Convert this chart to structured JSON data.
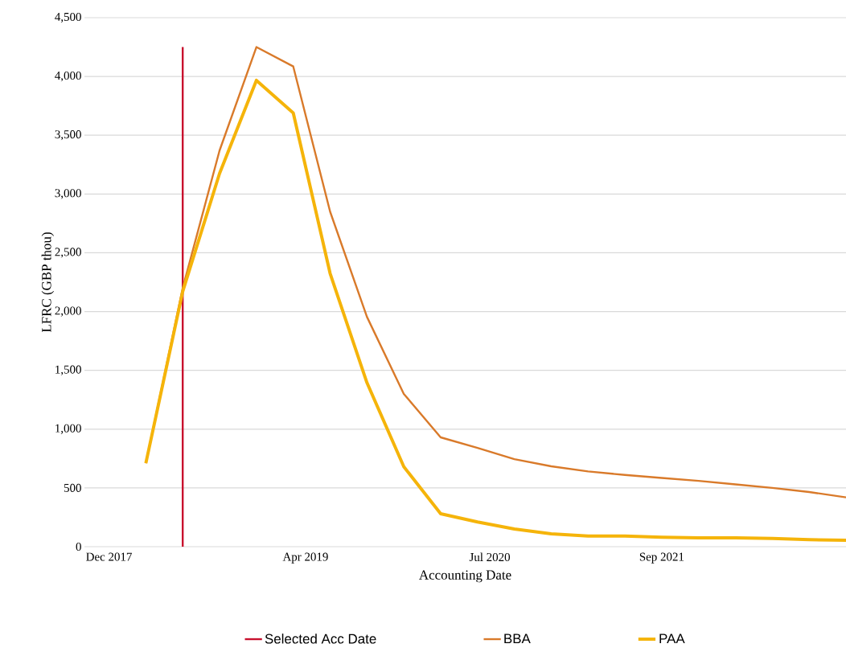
{
  "chart_data": {
    "type": "line",
    "xlabel": "Accounting Date",
    "ylabel": "LFRC  (GBP thou)",
    "x": [
      "2018-03",
      "2018-06",
      "2018-09",
      "2018-12",
      "2019-03",
      "2019-06",
      "2019-09",
      "2019-12",
      "2020-03",
      "2020-06",
      "2020-09",
      "2020-12",
      "2021-03",
      "2021-06",
      "2021-09",
      "2021-12",
      "2022-03",
      "2022-06",
      "2022-09",
      "2022-12"
    ],
    "series": [
      {
        "name": "Selected Acc Date",
        "color": "#c8102e",
        "x": [
          "2018-06",
          "2018-06"
        ],
        "values": [
          0,
          4250
        ]
      },
      {
        "name": "BBA",
        "color": "#d97a2a",
        "values": [
          710,
          2200,
          3370,
          4250,
          4085,
          2850,
          1955,
          1300,
          930,
          840,
          745,
          684,
          640,
          610,
          585,
          560,
          530,
          500,
          465,
          420
        ]
      },
      {
        "name": "PAA",
        "color": "#f5b40a",
        "values": [
          710,
          2170,
          3175,
          3967,
          3690,
          2325,
          1395,
          680,
          280,
          210,
          150,
          110,
          90,
          90,
          80,
          75,
          75,
          70,
          60,
          55
        ]
      }
    ],
    "xlim": [
      "2017-10",
      "2022-12"
    ],
    "xticks": [
      {
        "value": "2017-12",
        "label": "Dec 2017"
      },
      {
        "value": "2019-04",
        "label": "Apr 2019"
      },
      {
        "value": "2020-07",
        "label": "Jul 2020"
      },
      {
        "value": "2021-09",
        "label": "Sep 2021"
      }
    ],
    "ylim": [
      0,
      4500
    ],
    "yticks": [
      0,
      {
        "value": 500,
        "label": "500"
      },
      {
        "value": 1000,
        "label": "1,000"
      },
      {
        "value": 1500,
        "label": "1,500"
      },
      {
        "value": 2000,
        "label": "2,000"
      },
      {
        "value": 2500,
        "label": "2,500"
      },
      {
        "value": 3000,
        "label": "3,000"
      },
      {
        "value": 3500,
        "label": "3,500"
      },
      {
        "value": 4000,
        "label": "4,000"
      },
      {
        "value": 4500,
        "label": "4,500"
      }
    ],
    "grid": "y",
    "legend": "bottom",
    "marker": "none",
    "line_style": "solid"
  }
}
